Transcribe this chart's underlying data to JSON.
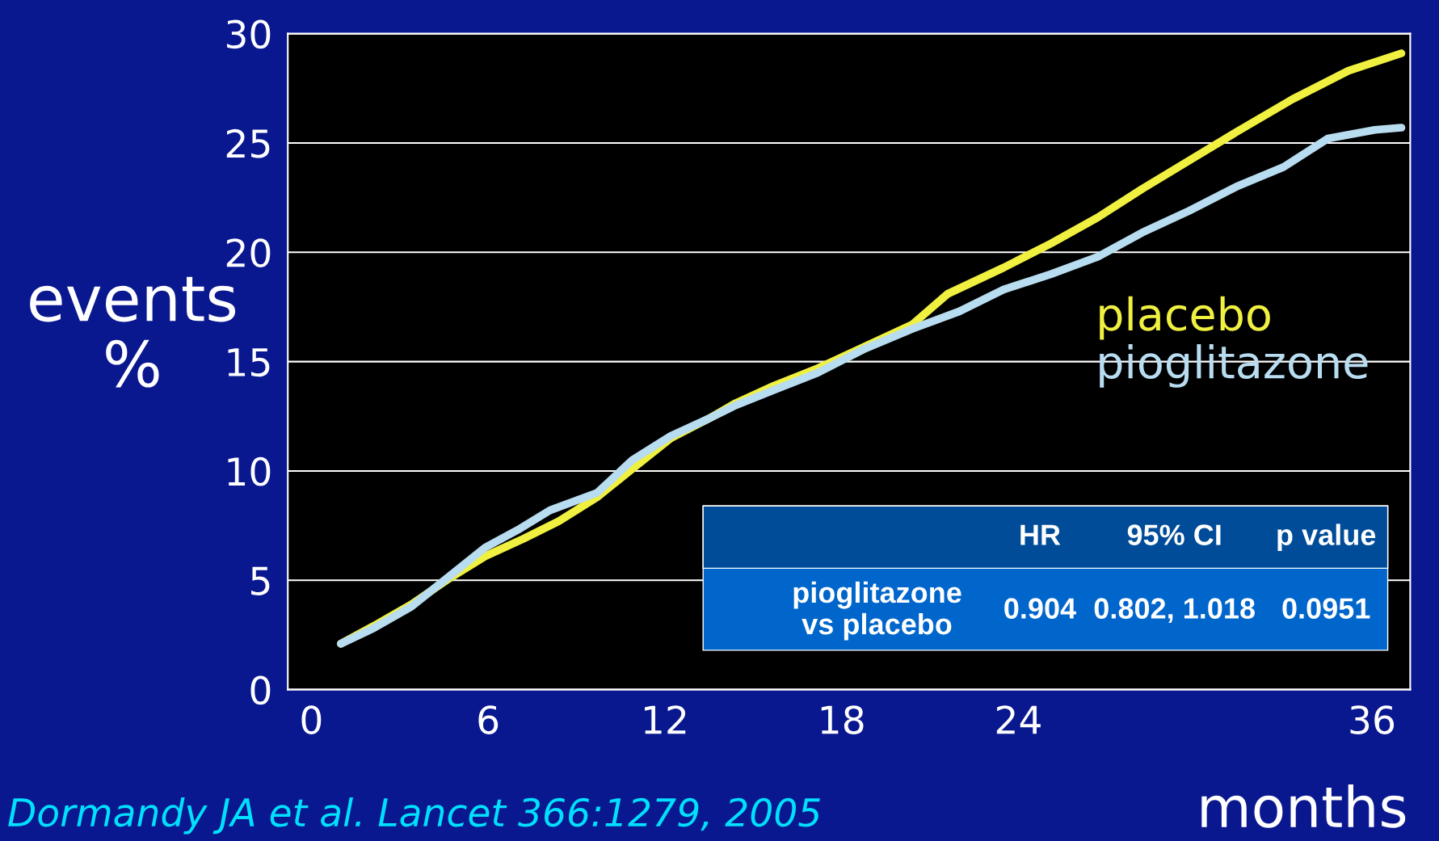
{
  "chart_data": {
    "type": "line",
    "xlabel": "months",
    "ylabel": "events\n%",
    "x": [
      1.0,
      2.1,
      3.4,
      4.7,
      5.9,
      7.2,
      8.4,
      9.7,
      10.9,
      12.2,
      13.5,
      14.4,
      15.7,
      17.2,
      18.8,
      20.4,
      21.6,
      23.5,
      25.1,
      26.7,
      28.2,
      29.8,
      31.4,
      33.3,
      35.2,
      37.0
    ],
    "series": [
      {
        "name": "placebo",
        "color": "#f0f040",
        "values": [
          2.1,
          2.9,
          3.9,
          5.1,
          6.1,
          6.9,
          7.7,
          8.8,
          10.1,
          11.5,
          12.4,
          13.1,
          13.9,
          14.7,
          15.7,
          16.7,
          18.1,
          19.3,
          20.4,
          21.6,
          22.9,
          24.2,
          25.5,
          27.0,
          28.3,
          29.1
        ]
      },
      {
        "name": "pioglitazone",
        "color": "#b8dcf0",
        "x": [
          1.0,
          2.1,
          3.4,
          4.7,
          5.9,
          7.0,
          8.1,
          9.7,
          10.9,
          12.2,
          13.5,
          14.4,
          15.7,
          17.2,
          18.8,
          20.4,
          22.0,
          23.5,
          25.1,
          26.7,
          28.2,
          29.8,
          31.4,
          33.0,
          34.5,
          36.1,
          37.0
        ],
        "values": [
          2.1,
          2.8,
          3.8,
          5.2,
          6.5,
          7.3,
          8.2,
          9.0,
          10.5,
          11.6,
          12.4,
          13.0,
          13.7,
          14.5,
          15.6,
          16.5,
          17.3,
          18.3,
          19.0,
          19.8,
          20.9,
          21.9,
          23.0,
          23.9,
          25.2,
          25.6,
          25.7
        ]
      }
    ],
    "xlim": [
      -0.8,
      37.3
    ],
    "ylim": [
      0,
      30
    ],
    "xticks": [
      0,
      6,
      12,
      18,
      24,
      36
    ],
    "yticks": [
      0,
      5,
      10,
      15,
      20,
      25,
      30
    ],
    "grid": "y",
    "legend": "right",
    "line_style": "solid",
    "marker": "none",
    "annotations": [
      "HR",
      "95% CI",
      "p value",
      "pioglitazone\nvs placebo",
      "0.904",
      "0.802, 1.018",
      "0.0951",
      "Dormandy JA et al. Lancet 366:1279, 2005"
    ]
  }
}
